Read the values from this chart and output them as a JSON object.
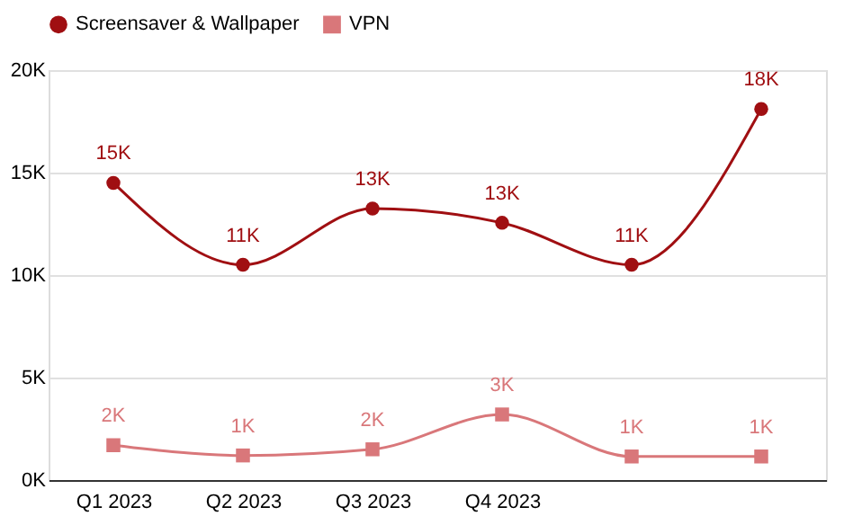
{
  "chart_data": {
    "type": "line",
    "categories": [
      "Q1 2023",
      "Q2 2023",
      "Q3 2023",
      "Q4 2023",
      null,
      null
    ],
    "series": [
      {
        "name": "Screensaver & Wallpaper",
        "color": "#a00f12",
        "marker": "circle",
        "values": [
          14500,
          10500,
          13250,
          12550,
          10500,
          18100
        ],
        "value_labels": [
          "15K",
          "11K",
          "13K",
          "13K",
          "11K",
          "18K"
        ]
      },
      {
        "name": "VPN",
        "color": "#d9777a",
        "marker": "square",
        "values": [
          1700,
          1200,
          1500,
          3200,
          1150,
          1150
        ],
        "value_labels": [
          "2K",
          "1K",
          "2K",
          "3K",
          "1K",
          "1K"
        ]
      }
    ],
    "ylim": [
      0,
      20000
    ],
    "yticks": [
      {
        "value": 0,
        "label": "0K"
      },
      {
        "value": 5000,
        "label": "5K"
      },
      {
        "value": 10000,
        "label": "10K"
      },
      {
        "value": 15000,
        "label": "15K"
      },
      {
        "value": 20000,
        "label": "20K"
      }
    ],
    "grid": "y",
    "legend": "top",
    "line_style": "solid"
  }
}
